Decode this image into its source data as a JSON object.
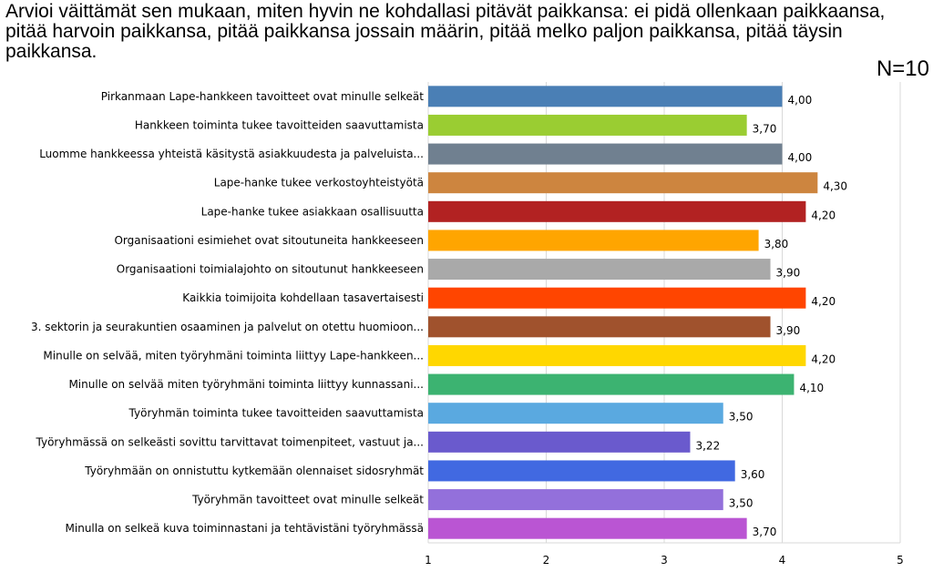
{
  "title": "Arvioi väittämät sen mukaan, miten hyvin ne kohdallasi pitävät paikkansa: ei pidä ollenkaan paikkaansa, pitää harvoin paikkansa, pitää paikkansa jossain määrin, pitää melko paljon paikkansa, pitää täysin paikkansa.",
  "n_label": "N=10",
  "chart_data": {
    "type": "bar",
    "orientation": "horizontal",
    "xlim": [
      1,
      5
    ],
    "xticks": [
      "1",
      "2",
      "3",
      "4",
      "5"
    ],
    "grid": true,
    "categories": [
      "Pirkanmaan Lape-hankkeen tavoitteet ovat minulle selkeät",
      "Hankkeen toiminta tukee tavoitteiden saavuttamista",
      "Luomme hankkeessa yhteistä käsitystä asiakkuudesta ja palveluista...",
      "Lape-hanke tukee verkostoyhteistyötä",
      "Lape-hanke tukee asiakkaan osallisuutta",
      "Organisaationi esimiehet ovat sitoutuneita hankkeeseen",
      "Organisaationi toimialajohto on sitoutunut hankkeeseen",
      "Kaikkia toimijoita kohdellaan tasavertaisesti",
      "3. sektorin ja seurakuntien osaaminen ja palvelut on otettu huomioon...",
      "Minulle on selvää, miten työryhmäni toiminta liittyy Lape-hankkeen...",
      "Minulle on selvää miten työryhmäni toiminta liittyy kunnassani...",
      "Työryhmän toiminta tukee tavoitteiden saavuttamista",
      "Työryhmässä on selkeästi sovittu tarvittavat toimenpiteet, vastuut ja...",
      "Työryhmään on onnistuttu kytkemään olennaiset sidosryhmät",
      "Työryhmän tavoitteet ovat minulle selkeät",
      "Minulla on selkeä kuva toiminnastani ja tehtävistäni työryhmässä"
    ],
    "values": [
      4.0,
      3.7,
      4.0,
      4.3,
      4.2,
      3.8,
      3.9,
      4.2,
      3.9,
      4.2,
      4.1,
      3.5,
      3.22,
      3.6,
      3.5,
      3.7
    ],
    "value_labels": [
      "4,00",
      "3,70",
      "4,00",
      "4,30",
      "4,20",
      "3,80",
      "3,90",
      "4,20",
      "3,90",
      "4,20",
      "4,10",
      "3,50",
      "3,22",
      "3,60",
      "3,50",
      "3,70"
    ],
    "colors": [
      "#4a7fb5",
      "#9acd32",
      "#708090",
      "#cd853f",
      "#b22222",
      "#ffa500",
      "#a9a9a9",
      "#ff4500",
      "#a0522d",
      "#ffd700",
      "#3cb371",
      "#5aa9e0",
      "#6a5acd",
      "#4169e1",
      "#9370db",
      "#ba55d3"
    ]
  }
}
